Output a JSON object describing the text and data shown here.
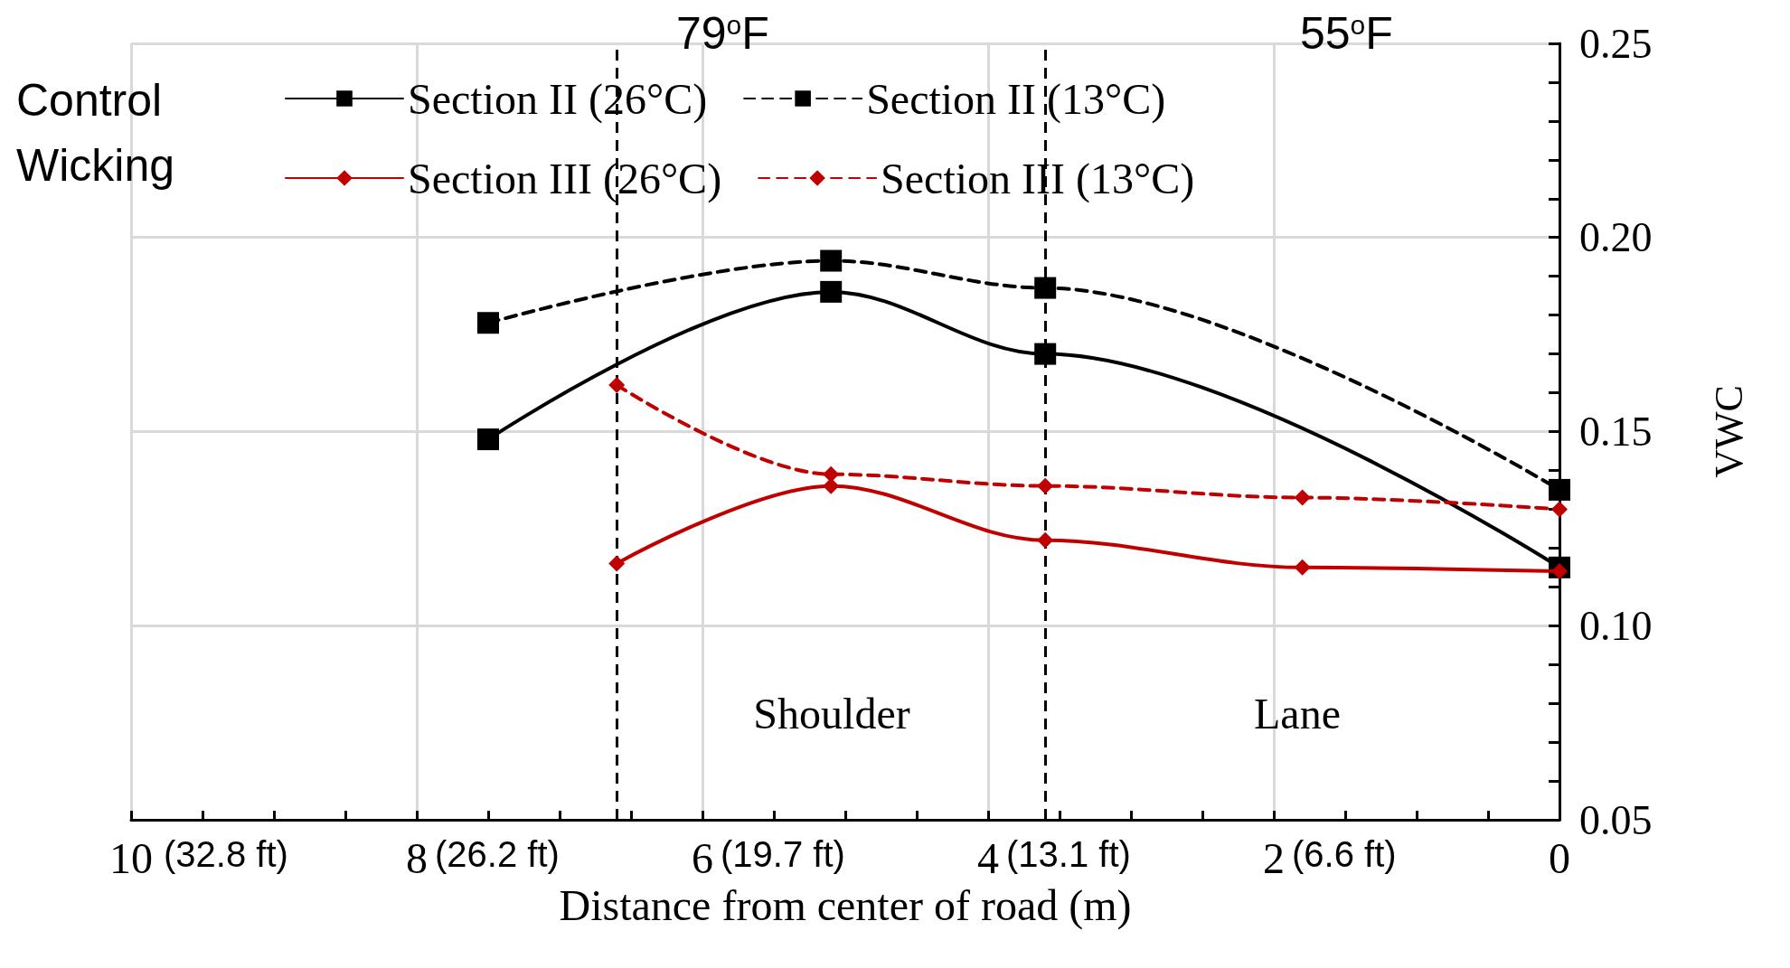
{
  "chart_data": {
    "type": "line",
    "xlabel": "Distance from center of road (m)",
    "ylabel": "VWC",
    "xlim": [
      10,
      0
    ],
    "ylim": [
      0.05,
      0.25
    ],
    "xticks": [
      10,
      {
        "value": 9.5,
        "label": null
      },
      {
        "value": 9,
        "label": null
      },
      {
        "value": 8.5,
        "label": null
      },
      8,
      {
        "value": 7.5,
        "label": null
      },
      {
        "value": 7,
        "label": null
      },
      {
        "value": 6.5,
        "label": null
      },
      6,
      {
        "value": 5.5,
        "label": null
      },
      {
        "value": 5,
        "label": null
      },
      {
        "value": 4.5,
        "label": null
      },
      4,
      {
        "value": 3.5,
        "label": null
      },
      {
        "value": 3,
        "label": null
      },
      {
        "value": 2.5,
        "label": null
      },
      2,
      {
        "value": 1.5,
        "label": null
      },
      {
        "value": 1,
        "label": null
      },
      {
        "value": 0.5,
        "label": null
      },
      0
    ],
    "yticks": [
      {
        "value": 0.05,
        "label": "0.05"
      },
      {
        "value": 0.06,
        "label": null
      },
      {
        "value": 0.07,
        "label": null
      },
      {
        "value": 0.08,
        "label": null
      },
      {
        "value": 0.09,
        "label": null
      },
      {
        "value": 0.1,
        "label": "0.10"
      },
      {
        "value": 0.11,
        "label": null
      },
      {
        "value": 0.12,
        "label": null
      },
      {
        "value": 0.13,
        "label": null
      },
      {
        "value": 0.14,
        "label": null
      },
      {
        "value": 0.15,
        "label": "0.15"
      },
      {
        "value": 0.16,
        "label": null
      },
      {
        "value": 0.17,
        "label": null
      },
      {
        "value": 0.18,
        "label": null
      },
      {
        "value": 0.19,
        "label": null
      },
      {
        "value": 0.2,
        "label": "0.20"
      },
      {
        "value": 0.21,
        "label": null
      },
      {
        "value": 0.22,
        "label": null
      },
      {
        "value": 0.23,
        "label": null
      },
      {
        "value": 0.24,
        "label": null
      },
      {
        "value": 0.25,
        "label": "0.25"
      }
    ],
    "grid": true,
    "legend": "top",
    "series": [
      {
        "name": "Section II (26°C)",
        "color": "#000000",
        "marker": "square",
        "line_style": "solid",
        "x": [
          7.5,
          5.1,
          3.6,
          0
        ],
        "values": [
          0.148,
          0.186,
          0.17,
          0.115
        ]
      },
      {
        "name": "Section II (13°C)",
        "color": "#000000",
        "marker": "square",
        "line_style": "dashed",
        "x": [
          7.5,
          5.1,
          3.6,
          0
        ],
        "values": [
          0.178,
          0.194,
          0.187,
          0.135
        ]
      },
      {
        "name": "Section III (26°C)",
        "color": "#c00000",
        "marker": "diamond",
        "line_style": "solid",
        "x": [
          6.6,
          5.1,
          3.6,
          1.8,
          0
        ],
        "values": [
          0.116,
          0.136,
          0.122,
          0.115,
          0.114
        ]
      },
      {
        "name": "Section III (13°C)",
        "color": "#c00000",
        "marker": "diamond",
        "line_style": "dashed",
        "x": [
          6.6,
          5.1,
          3.6,
          1.8,
          0
        ],
        "values": [
          0.162,
          0.139,
          0.136,
          0.133,
          0.13
        ]
      }
    ],
    "ref_lines": [
      {
        "axis": "x",
        "value": 6.6,
        "color": "#000000",
        "line_style": "dashed"
      },
      {
        "axis": "x",
        "value": 3.6,
        "color": "#000000",
        "line_style": "dashed"
      }
    ],
    "annotations": [
      "79$^{o}$F",
      "55$^{o}$F",
      "Control",
      "Wicking",
      "Shoulder",
      "Lane",
      "(32.8 ft)",
      "(26.2 ft)",
      "(19.7 ft)",
      "(13.1 ft)",
      "(6.6 ft)"
    ]
  }
}
